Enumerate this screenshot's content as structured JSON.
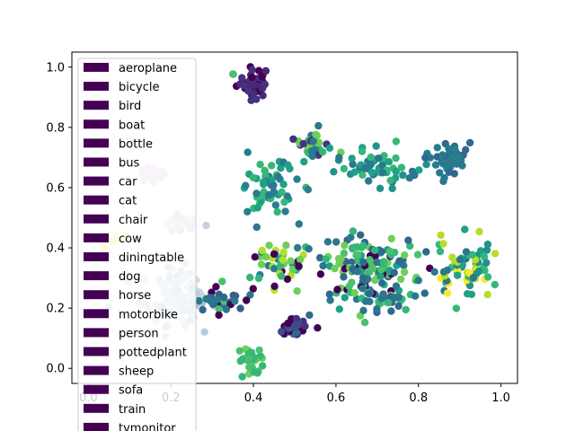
{
  "chart_data": {
    "type": "scatter",
    "title": "",
    "xlabel": "",
    "ylabel": "",
    "xlim": [
      -0.04,
      1.04
    ],
    "ylim": [
      -0.05,
      1.05
    ],
    "x_ticks": [
      0.0,
      0.2,
      0.4,
      0.6,
      0.8,
      1.0
    ],
    "x_tick_labels": [
      "0.0",
      "0.2",
      "0.4",
      "0.6",
      "0.8",
      "1.0"
    ],
    "y_ticks": [
      0.0,
      0.2,
      0.4,
      0.6,
      0.8,
      1.0
    ],
    "y_tick_labels": [
      "0.0",
      "0.2",
      "0.4",
      "0.6",
      "0.8",
      "1.0"
    ],
    "grid": false,
    "legend_position": "upper-left, overflowing below plot",
    "legend": {
      "labels": [
        "aeroplane",
        "bicycle",
        "bird",
        "boat",
        "bottle",
        "bus",
        "car",
        "cat",
        "chair",
        "cow",
        "diningtable",
        "dog",
        "horse",
        "motorbike",
        "person",
        "pottedplant",
        "sheep",
        "sofa",
        "train",
        "tvmonitor"
      ],
      "color": "#440154"
    },
    "clusters": [
      {
        "cx": 0.4,
        "cy": 0.95,
        "sx": 0.02,
        "sy": 0.025,
        "n": 45,
        "colors": [
          "#440154",
          "#46327e",
          "#482878"
        ]
      },
      {
        "cx": 0.35,
        "cy": 0.98,
        "sx": 0.005,
        "sy": 0.005,
        "n": 2,
        "colors": [
          "#4ac16d"
        ]
      },
      {
        "cx": 0.44,
        "cy": 0.59,
        "sx": 0.035,
        "sy": 0.05,
        "n": 60,
        "colors": [
          "#35b779",
          "#1fa187",
          "#277f8e",
          "#2a788e"
        ]
      },
      {
        "cx": 0.54,
        "cy": 0.75,
        "sx": 0.025,
        "sy": 0.03,
        "n": 30,
        "colors": [
          "#2a788e",
          "#35b779",
          "#46327e",
          "#6ece58"
        ]
      },
      {
        "cx": 0.7,
        "cy": 0.67,
        "sx": 0.045,
        "sy": 0.03,
        "n": 60,
        "colors": [
          "#1fa187",
          "#21918c",
          "#2a788e",
          "#35b779"
        ]
      },
      {
        "cx": 0.87,
        "cy": 0.7,
        "sx": 0.025,
        "sy": 0.03,
        "n": 50,
        "colors": [
          "#2a788e",
          "#31688e",
          "#277f8e"
        ]
      },
      {
        "cx": 0.15,
        "cy": 0.64,
        "sx": 0.015,
        "sy": 0.015,
        "n": 35,
        "colors": [
          "#e3c8dc",
          "#d6c8e0",
          "#dacde4"
        ]
      },
      {
        "cx": 0.22,
        "cy": 0.48,
        "sx": 0.02,
        "sy": 0.015,
        "n": 25,
        "colors": [
          "#d6c8e0",
          "#e3d6ec",
          "#c5b8d6"
        ]
      },
      {
        "cx": 0.06,
        "cy": 0.43,
        "sx": 0.02,
        "sy": 0.01,
        "n": 8,
        "colors": [
          "#f0f0a0",
          "#fde725"
        ]
      },
      {
        "cx": 0.21,
        "cy": 0.24,
        "sx": 0.04,
        "sy": 0.045,
        "n": 120,
        "colors": [
          "#c8d6e0",
          "#b8ccd8",
          "#d0dde6",
          "#a9c0cf"
        ]
      },
      {
        "cx": 0.31,
        "cy": 0.23,
        "sx": 0.035,
        "sy": 0.03,
        "n": 35,
        "colors": [
          "#31688e",
          "#2a788e",
          "#355f8d",
          "#440154",
          "#4ac16d"
        ]
      },
      {
        "cx": 0.46,
        "cy": 0.34,
        "sx": 0.04,
        "sy": 0.04,
        "n": 45,
        "colors": [
          "#35b779",
          "#277f8e",
          "#440154",
          "#6ece58",
          "#b5de2b"
        ]
      },
      {
        "cx": 0.5,
        "cy": 0.14,
        "sx": 0.02,
        "sy": 0.02,
        "n": 30,
        "colors": [
          "#3e4a89",
          "#31688e",
          "#440154",
          "#46327e"
        ]
      },
      {
        "cx": 0.39,
        "cy": 0.04,
        "sx": 0.015,
        "sy": 0.02,
        "n": 30,
        "colors": [
          "#4ac16d",
          "#35b779",
          "#6ece58"
        ]
      },
      {
        "cx": 0.68,
        "cy": 0.33,
        "sx": 0.065,
        "sy": 0.055,
        "n": 150,
        "colors": [
          "#35b779",
          "#4ac16d",
          "#6ece58",
          "#1fa187",
          "#2a788e",
          "#440154",
          "#31688e"
        ]
      },
      {
        "cx": 0.72,
        "cy": 0.23,
        "sx": 0.035,
        "sy": 0.02,
        "n": 30,
        "colors": [
          "#2a788e",
          "#31688e",
          "#35b779"
        ]
      },
      {
        "cx": 0.91,
        "cy": 0.33,
        "sx": 0.035,
        "sy": 0.05,
        "n": 70,
        "colors": [
          "#b5de2b",
          "#2a788e",
          "#1fa187",
          "#fde725",
          "#35b779",
          "#21918c"
        ]
      }
    ]
  }
}
